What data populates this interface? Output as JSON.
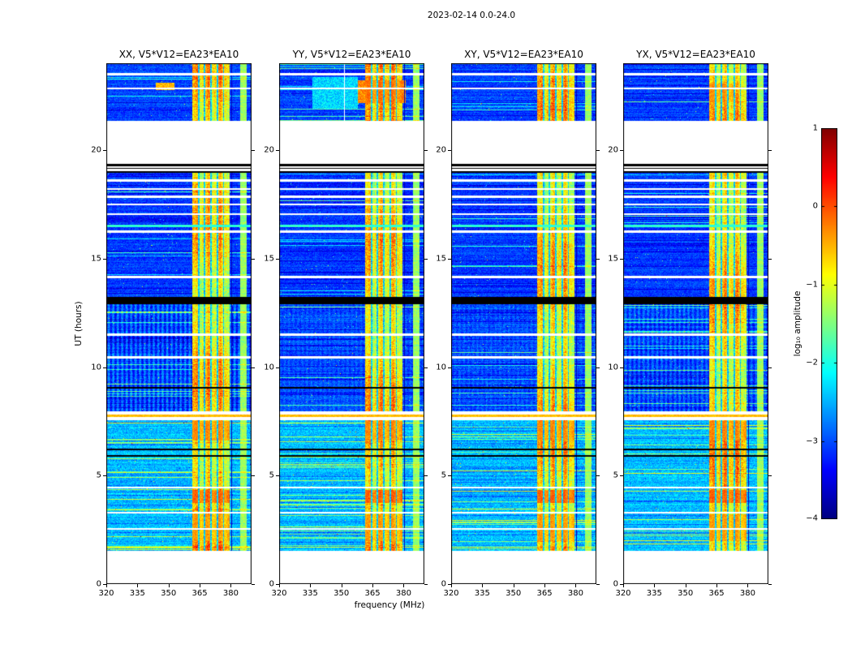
{
  "chart_data": {
    "type": "heatmap",
    "title": "2023-02-14 0.0-24.0",
    "xlabel": "frequency (MHz)",
    "ylabel": "UT (hours)",
    "xlim": [
      320,
      390
    ],
    "xticks": [
      320,
      335,
      350,
      365,
      380
    ],
    "ylim": [
      0,
      24
    ],
    "yticks": [
      0,
      5,
      10,
      15,
      20
    ],
    "grid": false,
    "panels": [
      {
        "title": "XX, V5*V12=EA23*EA10"
      },
      {
        "title": "YY, V5*V12=EA23*EA10"
      },
      {
        "title": "XY, V5*V12=EA23*EA10"
      },
      {
        "title": "YX, V5*V12=EA23*EA10"
      }
    ],
    "colorbar": {
      "label": "log₁₀ amplitude",
      "ticks": [
        1,
        0,
        -1,
        -2,
        -3,
        -4
      ],
      "vmin": -4,
      "vmax": 1,
      "colormap": "jet",
      "position": "right"
    },
    "band": {
      "f0": 361.5,
      "f1": 379.5,
      "dark_lines": [
        364.5,
        367.5,
        370.5,
        373.5,
        376.5
      ],
      "edge_dark": 380.4
    },
    "right_strip": {
      "f0": 384.5,
      "f1": 387.5,
      "value": -1.35
    },
    "segments": [
      {
        "t0": 0.0,
        "t1": 1.55,
        "kind": "empty"
      },
      {
        "t0": 1.55,
        "t1": 7.55,
        "kind": "data",
        "base": -2.45,
        "noise": 0.6,
        "band": -0.72,
        "streaky": 0.12
      },
      {
        "t0": 7.55,
        "t1": 7.95,
        "kind": "empty"
      },
      {
        "t0": 7.95,
        "t1": 12.9,
        "kind": "data",
        "base": -3.0,
        "noise": 0.55,
        "band": -0.8,
        "streaky": 0.07,
        "stripe_amp": [
          0.35,
          0.1,
          0.1,
          0.25
        ]
      },
      {
        "t0": 12.9,
        "t1": 13.25,
        "kind": "black"
      },
      {
        "t0": 13.25,
        "t1": 18.95,
        "kind": "data",
        "base": -3.1,
        "noise": 0.5,
        "band": -0.85,
        "streaky": 0.05
      },
      {
        "t0": 18.95,
        "t1": 19.35,
        "kind": "black"
      },
      {
        "t0": 19.35,
        "t1": 21.35,
        "kind": "empty"
      },
      {
        "t0": 21.35,
        "t1": 24.0,
        "kind": "data",
        "base": -3.05,
        "noise": 0.5,
        "band": -0.75,
        "streaky": 0.06
      }
    ],
    "white_lines": [
      2.55,
      3.3,
      4.45,
      10.45,
      11.5,
      14.15,
      16.25,
      17.05,
      17.5,
      17.85,
      18.2,
      18.6,
      19.08,
      19.22,
      22.85,
      23.5
    ],
    "black_lines": [
      5.9,
      6.2,
      9.05
    ],
    "colored_lines": [
      {
        "t": 7.75,
        "value": -0.55
      },
      {
        "t": 16.5,
        "value": -1.9
      }
    ],
    "blobs": [
      {
        "panels": [
          1
        ],
        "t": [
          22.15,
          23.2
        ],
        "f": [
          358,
          381
        ],
        "value": -0.3
      },
      {
        "panels": [
          1
        ],
        "t": [
          21.9,
          23.35
        ],
        "f": [
          336,
          358
        ],
        "value": -2.3
      },
      {
        "panels": [
          0
        ],
        "t": [
          22.75,
          23.1
        ],
        "f": [
          344,
          353
        ],
        "value": -0.55
      },
      {
        "panels": [
          3
        ],
        "t": [
          22.2,
          23.05
        ],
        "f": [
          361.5,
          373
        ],
        "value": -0.45
      },
      {
        "panels": [
          0,
          1,
          2,
          3
        ],
        "t": [
          3.75,
          4.35
        ],
        "f": [
          361.5,
          379.5
        ],
        "value": -0.2
      },
      {
        "panels": [
          0,
          1,
          2,
          3
        ],
        "t": [
          6.6,
          7.5
        ],
        "f": [
          361.5,
          379.5
        ],
        "value": -0.4
      },
      {
        "panels": [
          0,
          1,
          2,
          3
        ],
        "t": [
          2.0,
          3.2
        ],
        "f": [
          361.5,
          379.5
        ],
        "value": -0.5
      }
    ],
    "vlines_white": [
      {
        "panel": 1,
        "f": 351.5,
        "t": [
          21.35,
          24
        ]
      }
    ]
  }
}
